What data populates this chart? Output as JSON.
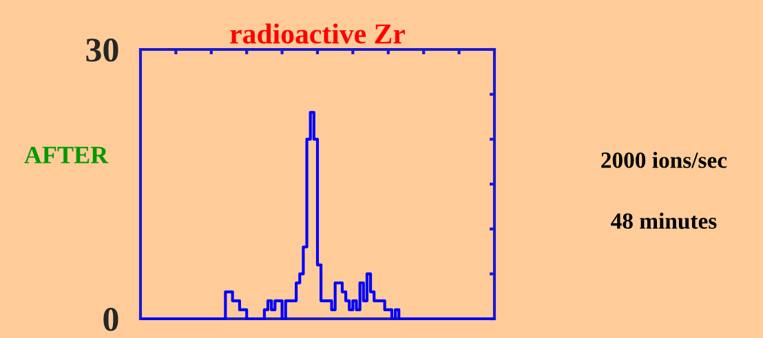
{
  "chart_data": {
    "type": "step",
    "title": "radioactive Zr",
    "ylabel": "AFTER",
    "annotations": [
      "2000 ions/sec",
      "48 minutes"
    ],
    "categories": [
      null,
      null,
      null,
      null,
      null,
      null,
      null,
      null,
      null,
      null,
      null,
      null,
      null,
      null,
      null,
      null,
      null,
      null,
      null,
      null,
      null,
      null,
      null,
      null,
      null,
      null,
      null,
      null,
      null,
      null,
      null,
      null,
      null,
      null,
      null,
      null,
      null,
      null,
      null,
      null,
      null,
      null,
      null,
      null,
      null,
      null,
      null,
      null,
      null,
      null,
      null,
      null,
      null,
      null,
      null,
      null,
      null,
      null,
      null,
      null,
      null,
      null,
      null,
      null,
      null,
      null,
      null,
      null,
      null,
      null,
      null,
      null,
      null,
      null,
      null,
      null,
      null,
      null,
      null,
      null,
      null,
      null,
      null,
      null,
      null,
      null,
      null,
      null,
      null,
      null,
      null,
      null,
      null,
      null,
      null,
      null,
      null,
      null,
      null,
      null
    ],
    "values": [
      0,
      0,
      0,
      0,
      0,
      0,
      0,
      0,
      0,
      0,
      0,
      0,
      0,
      0,
      0,
      0,
      0,
      0,
      0,
      0,
      0,
      0,
      0,
      0,
      3,
      3,
      2,
      2,
      1,
      1,
      0,
      0,
      0,
      0,
      0,
      1,
      2,
      1,
      2,
      2,
      0,
      2,
      2,
      2,
      4,
      5,
      8,
      20,
      23,
      20,
      6,
      2,
      2,
      2,
      1,
      4,
      4,
      3,
      2,
      1,
      2,
      1,
      4,
      2,
      5,
      3,
      2,
      2,
      2,
      1,
      1,
      0,
      1,
      0,
      0,
      0,
      0,
      0,
      0,
      0,
      0,
      0,
      0,
      0,
      0,
      0,
      0,
      0,
      0,
      0,
      0,
      0,
      0,
      0,
      0,
      0,
      0,
      0,
      0,
      0
    ],
    "color": "#0000ff",
    "ylim": [
      0,
      30
    ],
    "yticks": [
      0,
      {
        "value": 5,
        "label": null
      },
      {
        "value": 10,
        "label": null
      },
      {
        "value": 15,
        "label": null
      },
      {
        "value": 20,
        "label": null
      },
      {
        "value": 25,
        "label": null
      },
      30
    ],
    "tick_labels": "y"
  }
}
